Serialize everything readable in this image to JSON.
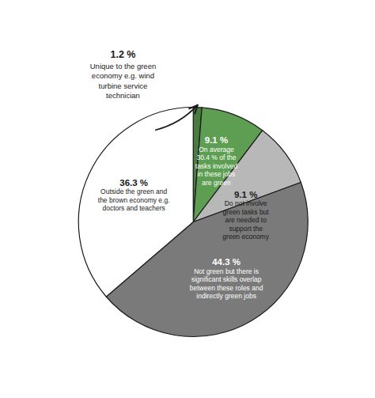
{
  "chart_data": {
    "type": "pie",
    "categories": [
      "Unique to the green\neconomy e.g. wind\nturbine service\ntechnician",
      "On average\n30.4 % of the\ntasks involved\nin these jobs\nare green",
      "Do not involve\ngreen tasks but\nare needed to\nsupport the\ngreen economy",
      "Not green but there is\nsignificant skills overlap\nbetween these roles and\nindirectly green jobs",
      "Outside the green and\nthe brown economy e.g.\ndoctors and teachers"
    ],
    "values": [
      1.2,
      9.1,
      9.1,
      44.3,
      36.3
    ],
    "value_labels": [
      "1.2 %",
      "9.1 %",
      "9.1 %",
      "44.3 %",
      "36.3 %"
    ],
    "colors": [
      "#4a7c3f",
      "#5d9e52",
      "#b8b8b8",
      "#7a7a7a",
      "#ffffff"
    ],
    "data_labels": true
  }
}
